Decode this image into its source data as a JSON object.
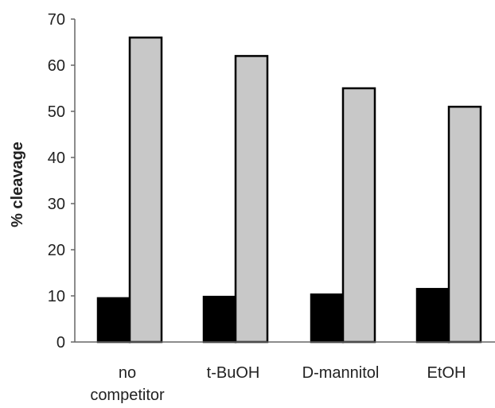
{
  "chart_data": {
    "type": "bar",
    "title": "",
    "xlabel": "",
    "ylabel": "% cleavage",
    "ylim": [
      0,
      70
    ],
    "yticks": [
      0,
      10,
      20,
      30,
      40,
      50,
      60,
      70
    ],
    "grid": false,
    "legend": "none",
    "categories": [
      [
        "no",
        "competitor"
      ],
      [
        "t-BuOH"
      ],
      [
        "D-mannitol"
      ],
      [
        "EtOH"
      ]
    ],
    "series": [
      {
        "color": "#000000",
        "values": [
          9.5,
          9.8,
          10.3,
          11.5
        ]
      },
      {
        "color": "#c8c8c8",
        "values": [
          66,
          62,
          55,
          51
        ]
      }
    ]
  }
}
